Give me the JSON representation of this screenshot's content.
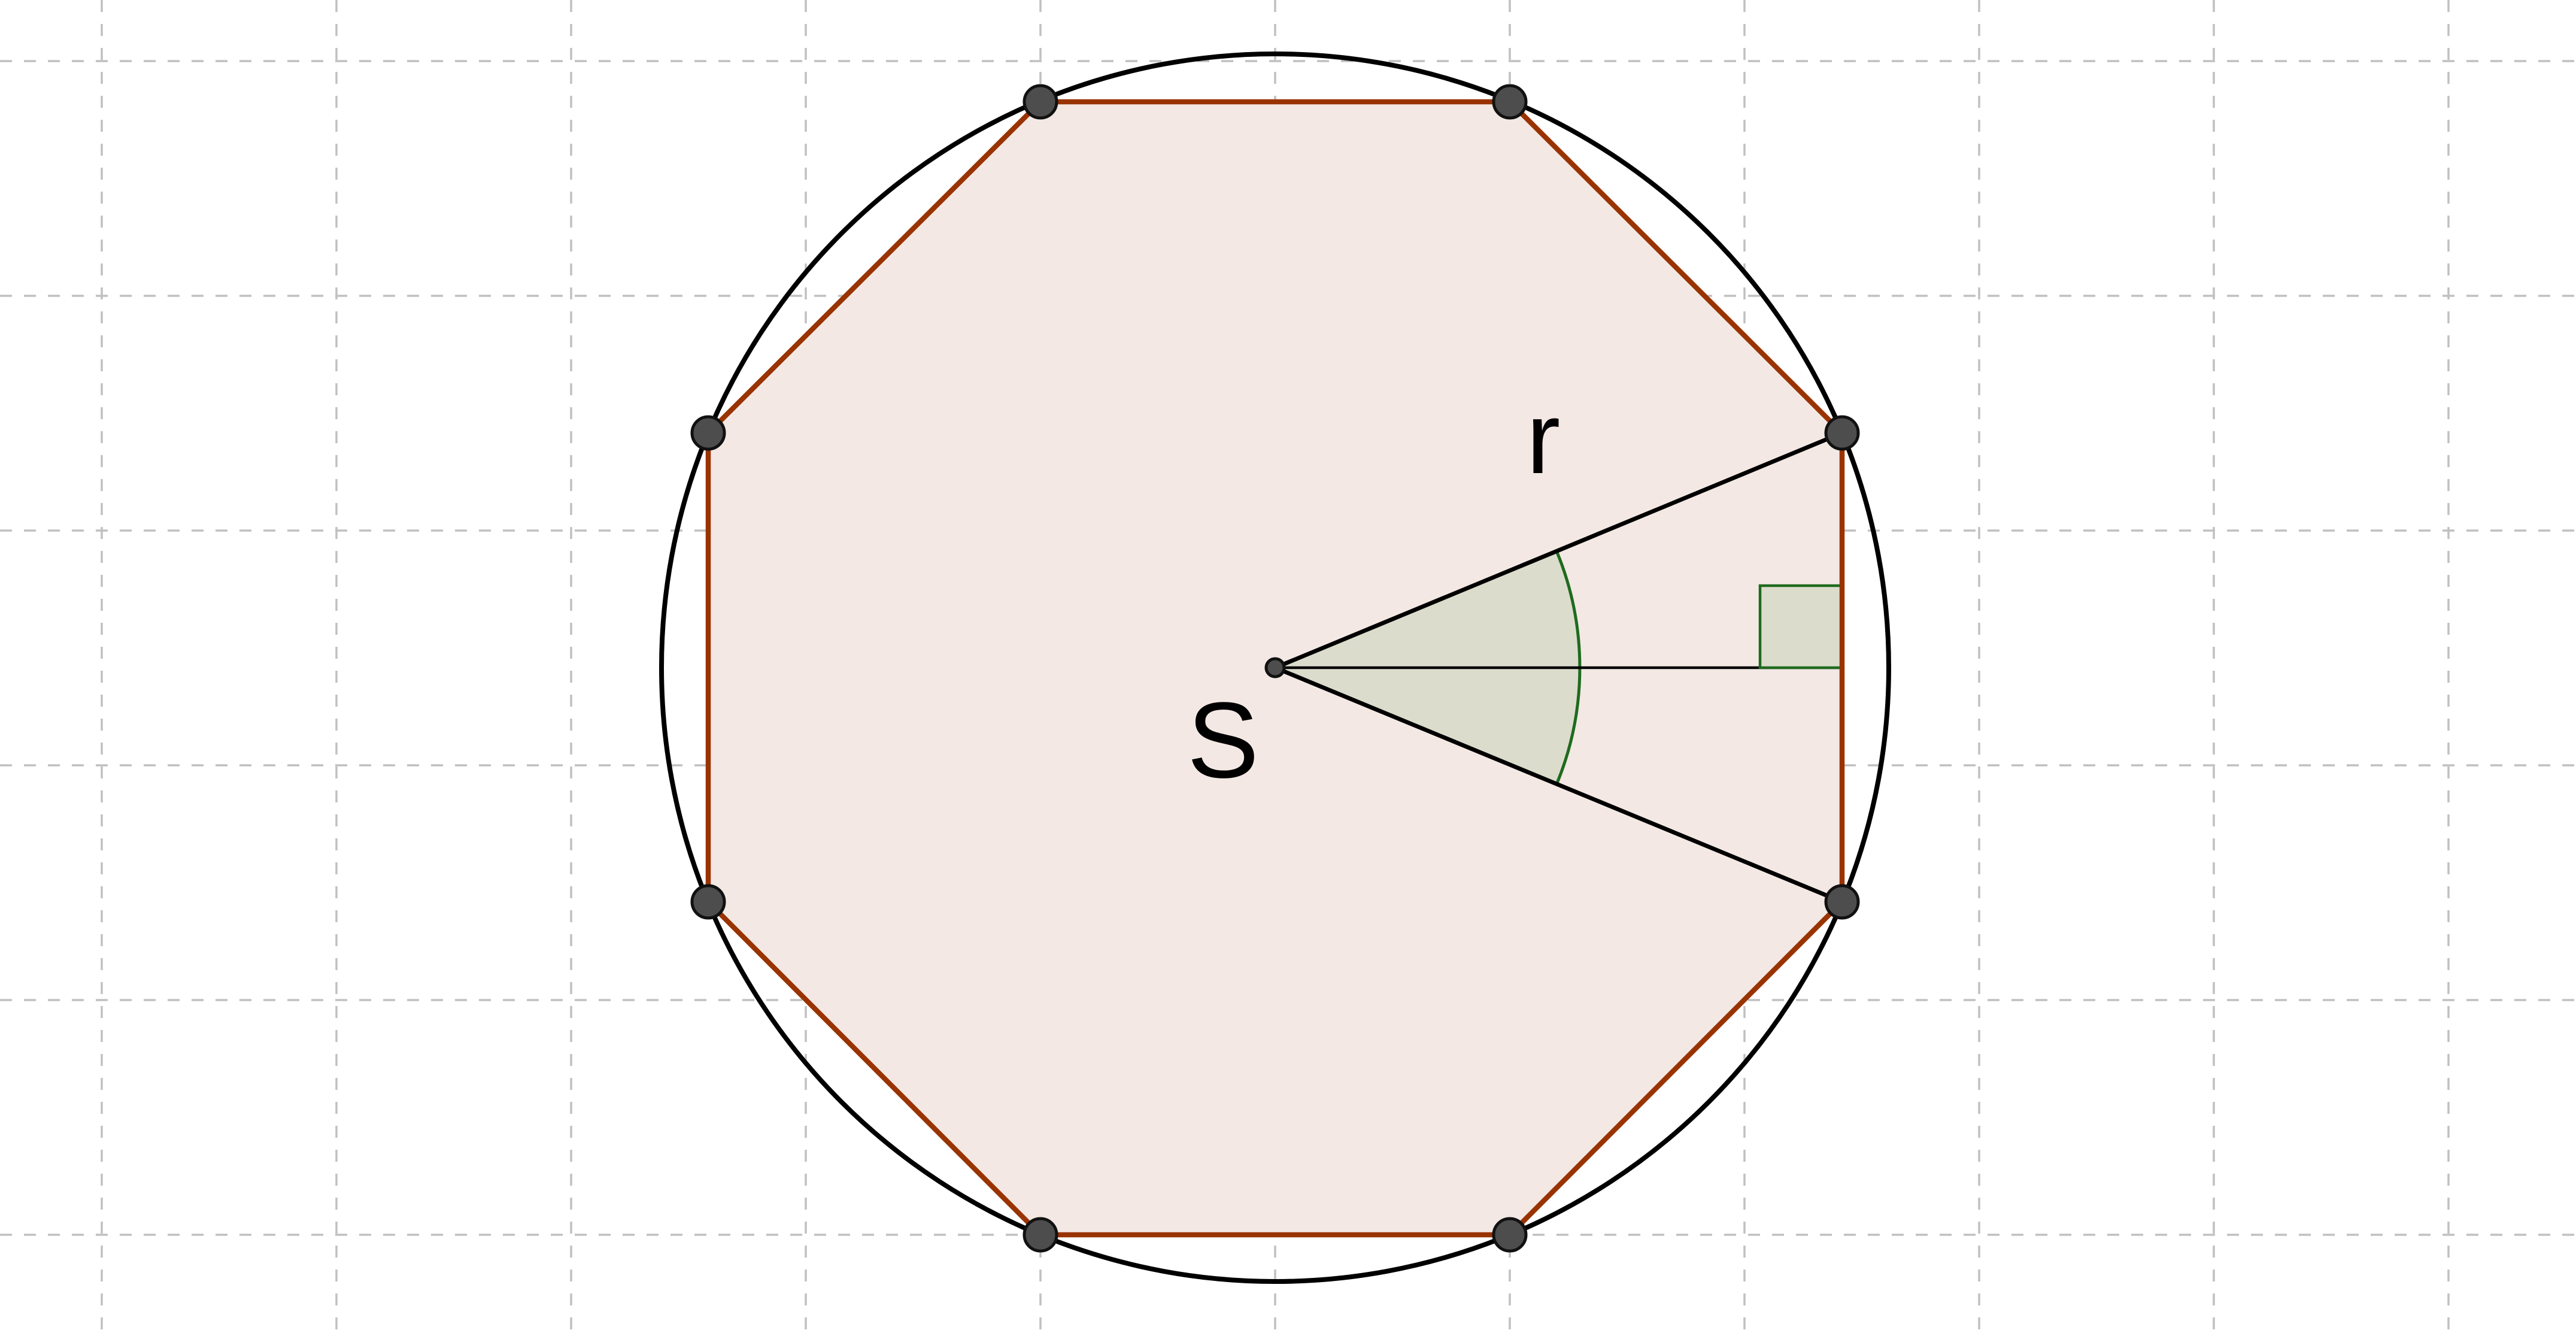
{
  "diagram": {
    "center_label": "S",
    "radius_label": "r",
    "colors": {
      "background": "#ffffff",
      "grid": "#c0c0c0",
      "circle": "#000000",
      "polygon_edge": "#993300",
      "polygon_fill": "#f3e8e4",
      "angle_fill": "#dcdccc",
      "angle_stroke": "#1e6b1e",
      "vertex_fill": "#4d4d4d"
    }
  }
}
